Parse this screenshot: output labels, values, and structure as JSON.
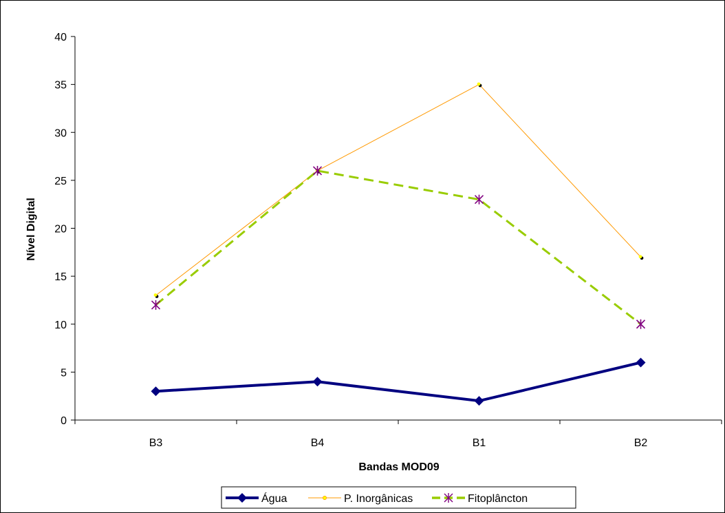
{
  "chart_data": {
    "type": "line",
    "title": "",
    "xlabel": "Bandas MOD09",
    "ylabel": "Nível Digital",
    "categories": [
      "B3",
      "B4",
      "B1",
      "B2"
    ],
    "ylim": [
      0,
      40
    ],
    "yticks": [
      0,
      5,
      10,
      15,
      20,
      25,
      30,
      35,
      40
    ],
    "grid": false,
    "legend_position": "bottom",
    "series": [
      {
        "name": "Água",
        "values": [
          3,
          4,
          2,
          6
        ],
        "color": "#000080",
        "marker": "diamond",
        "line_style": "solid-thick"
      },
      {
        "name": "P. Inorgânicas",
        "values": [
          13,
          26,
          35,
          17
        ],
        "color": "#FF9900",
        "marker": "dot-yellow",
        "line_style": "solid-thin"
      },
      {
        "name": "Fitoplâncton",
        "values": [
          12,
          26,
          23,
          10
        ],
        "color": "#99CC00",
        "marker": "star-purple",
        "line_style": "dashed"
      }
    ]
  }
}
